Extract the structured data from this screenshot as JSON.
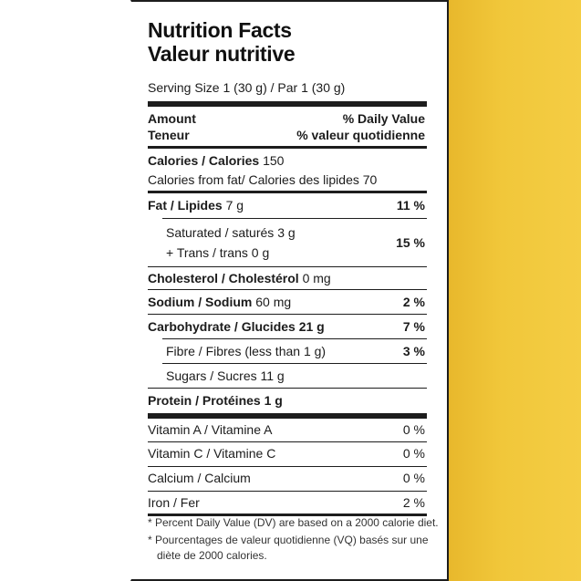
{
  "title_en": "Nutrition Facts",
  "title_fr": "Valeur nutritive",
  "serving": "Serving Size 1 (30 g) / Par 1 (30 g)",
  "header": {
    "amount_en": "Amount",
    "amount_fr": "Teneur",
    "dv_en": "% Daily Value",
    "dv_fr": "% valeur quotidienne"
  },
  "calories": {
    "label": "Calories / Calories",
    "value": "150",
    "fat_label": "Calories from fat/ Calories des lipides",
    "fat_value": "70"
  },
  "nutrients": {
    "fat": {
      "label": "Fat / Lipides",
      "amount": "7 g",
      "dv": "11 %"
    },
    "saturated": {
      "label": "Saturated / saturés",
      "amount": "3 g",
      "dv": "15 %"
    },
    "trans": {
      "label": "+ Trans / trans",
      "amount": "0 g"
    },
    "cholesterol": {
      "label": "Cholesterol / Cholestérol",
      "amount": "0 mg"
    },
    "sodium": {
      "label": "Sodium / Sodium",
      "amount": "60 mg",
      "dv": "2 %"
    },
    "carbohydrate": {
      "label": "Carbohydrate / Glucides",
      "amount": "21 g",
      "dv": "7 %"
    },
    "fibre": {
      "label": "Fibre / Fibres (less than 1 g)",
      "dv": "3 %"
    },
    "sugars": {
      "label": "Sugars / Sucres",
      "amount": "11 g"
    },
    "protein": {
      "label": "Protein / Protéines",
      "amount": "1 g"
    }
  },
  "vitamins": {
    "vitamin_a": {
      "label": "Vitamin A / Vitamine A",
      "dv": "0 %"
    },
    "vitamin_c": {
      "label": "Vitamin C / Vitamine C",
      "dv": "0 %"
    },
    "calcium": {
      "label": "Calcium / Calcium",
      "dv": "0 %"
    },
    "iron": {
      "label": "Iron / Fer",
      "dv": "2 %"
    }
  },
  "footnotes": {
    "en": "* Percent Daily Value (DV) are based on a 2000 calorie diet.",
    "fr_line1": "* Pourcentages de valeur quotidienne (VQ) basés sur une",
    "fr_line2": "diète de 2000 calories."
  },
  "colors": {
    "ink": "#1d1d1d",
    "package_yellow": "#f1c73a",
    "background": "#ffffff"
  }
}
